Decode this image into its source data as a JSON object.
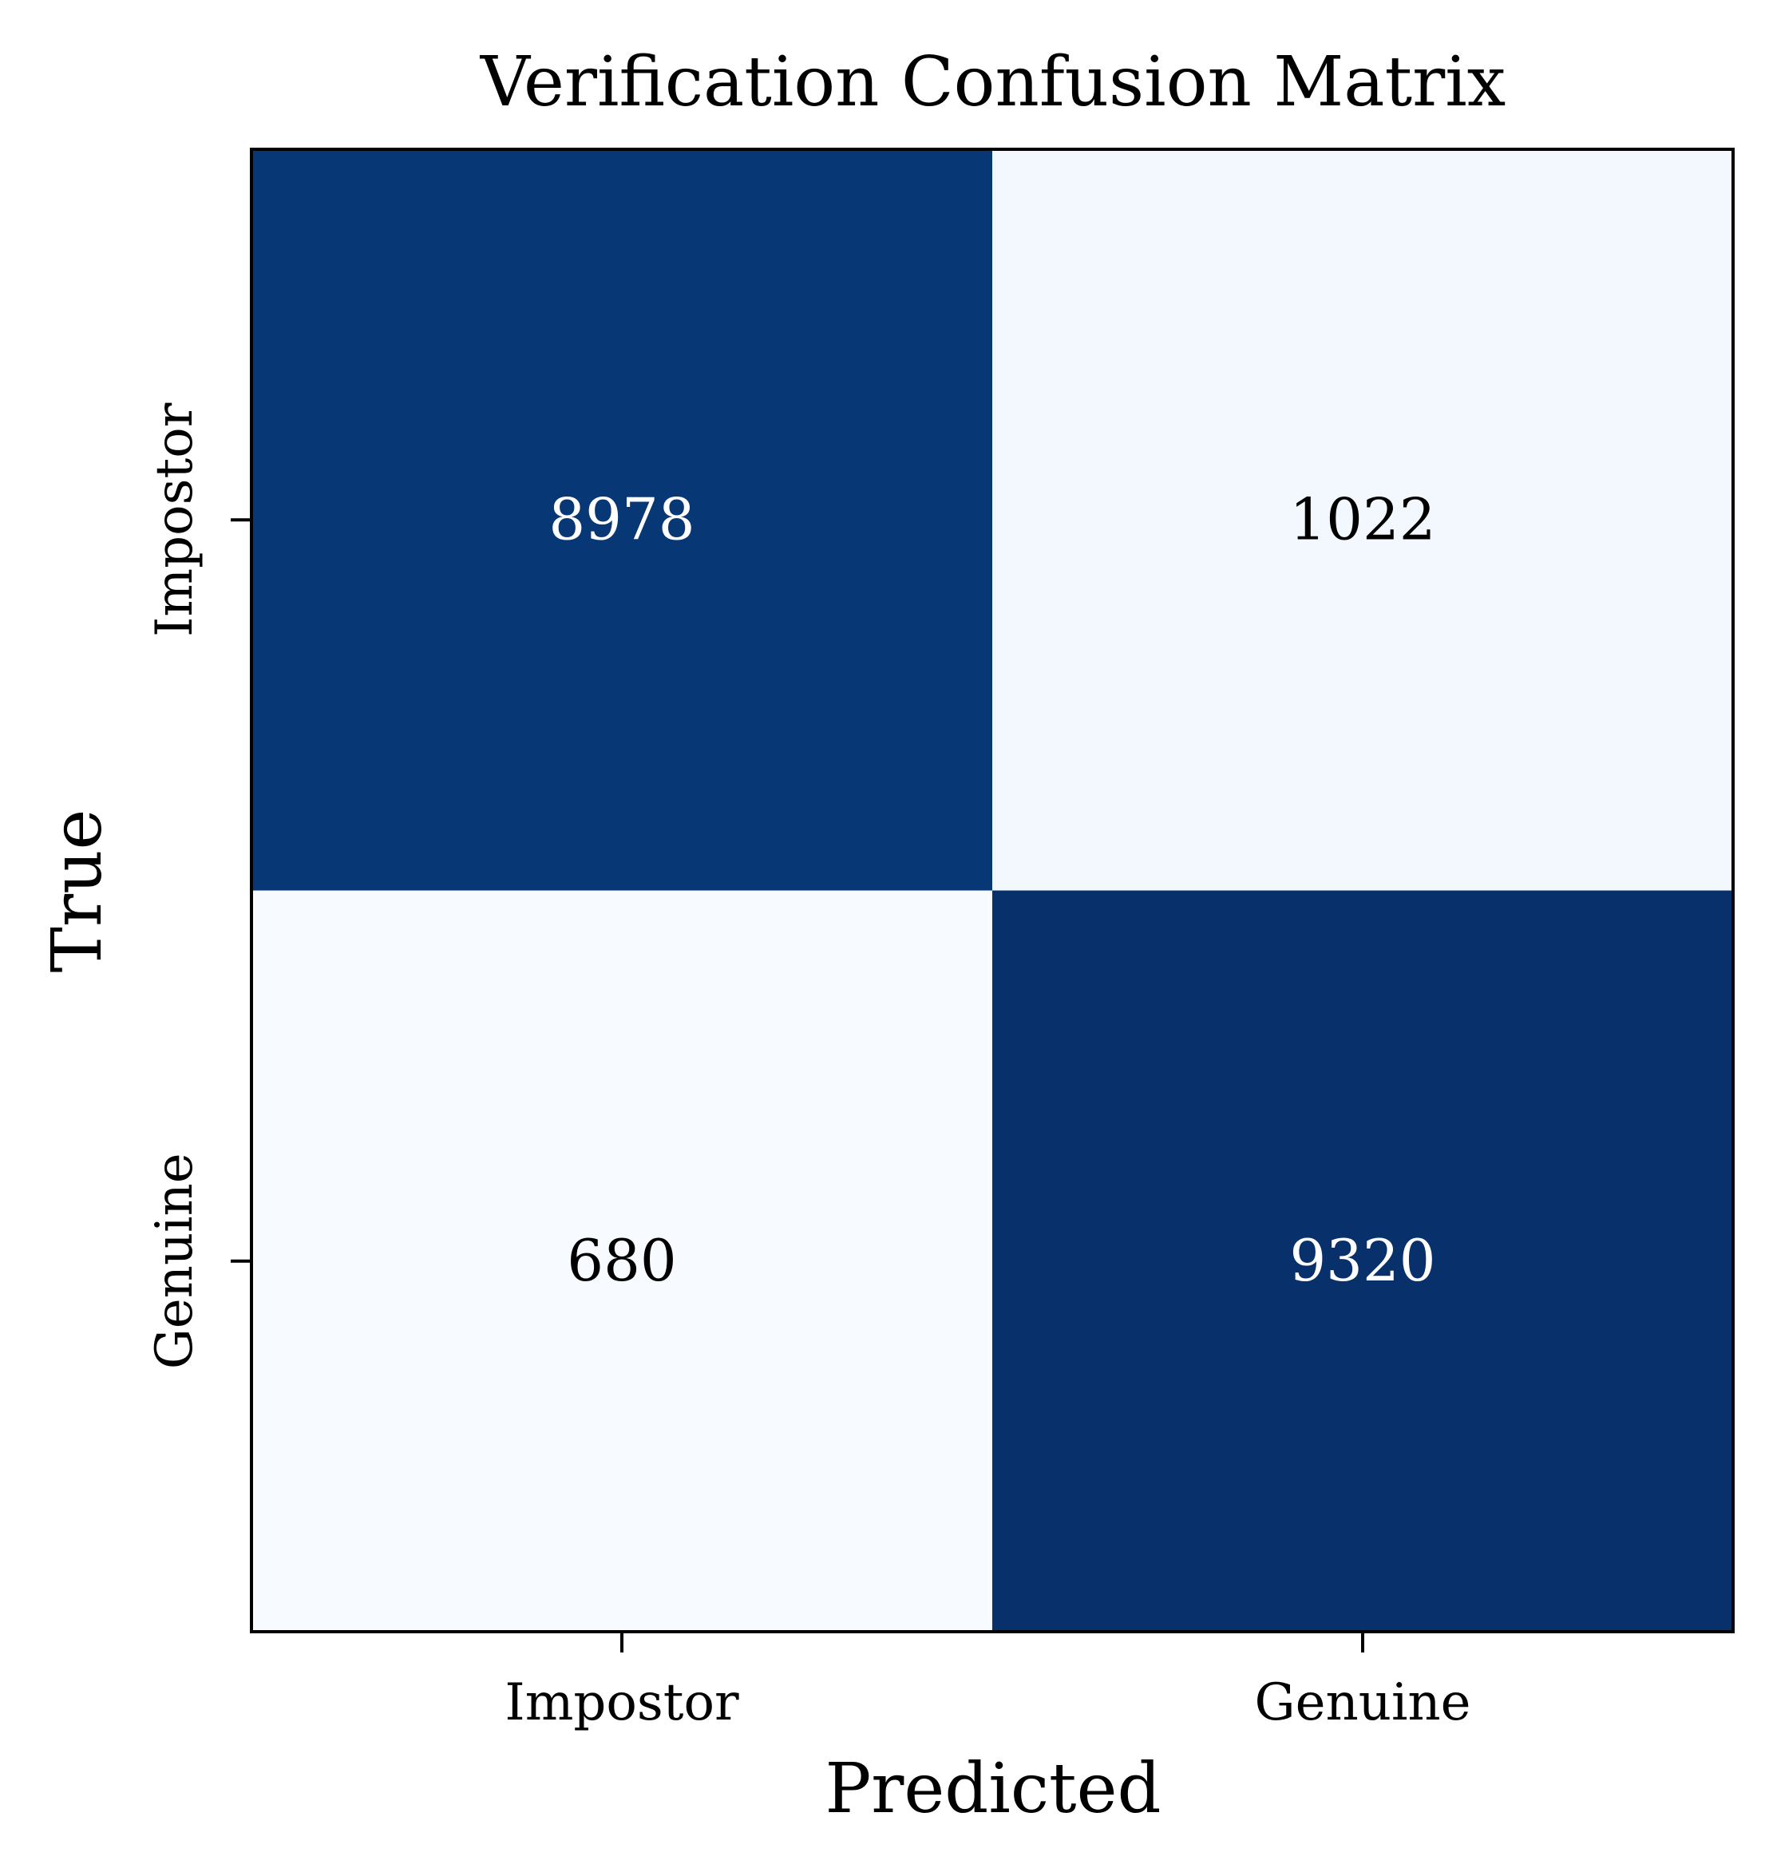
{
  "chart_data": {
    "type": "heatmap",
    "title": "Verification Confusion Matrix",
    "xlabel": "Predicted",
    "ylabel": "True",
    "x_categories": [
      "Impostor",
      "Genuine"
    ],
    "y_categories": [
      "Impostor",
      "Genuine"
    ],
    "values": [
      [
        8978,
        1022
      ],
      [
        680,
        9320
      ]
    ],
    "colormap": "Blues",
    "colorbar": false,
    "colors": {
      "dark_cell": "#0b3875",
      "darkest_cell": "#0a306a",
      "light_cell": "#edf4fc",
      "lightest_cell": "#f6f9ff",
      "text_on_dark": "#ffffff",
      "text_on_light": "#000000",
      "axes": "#000000"
    }
  }
}
